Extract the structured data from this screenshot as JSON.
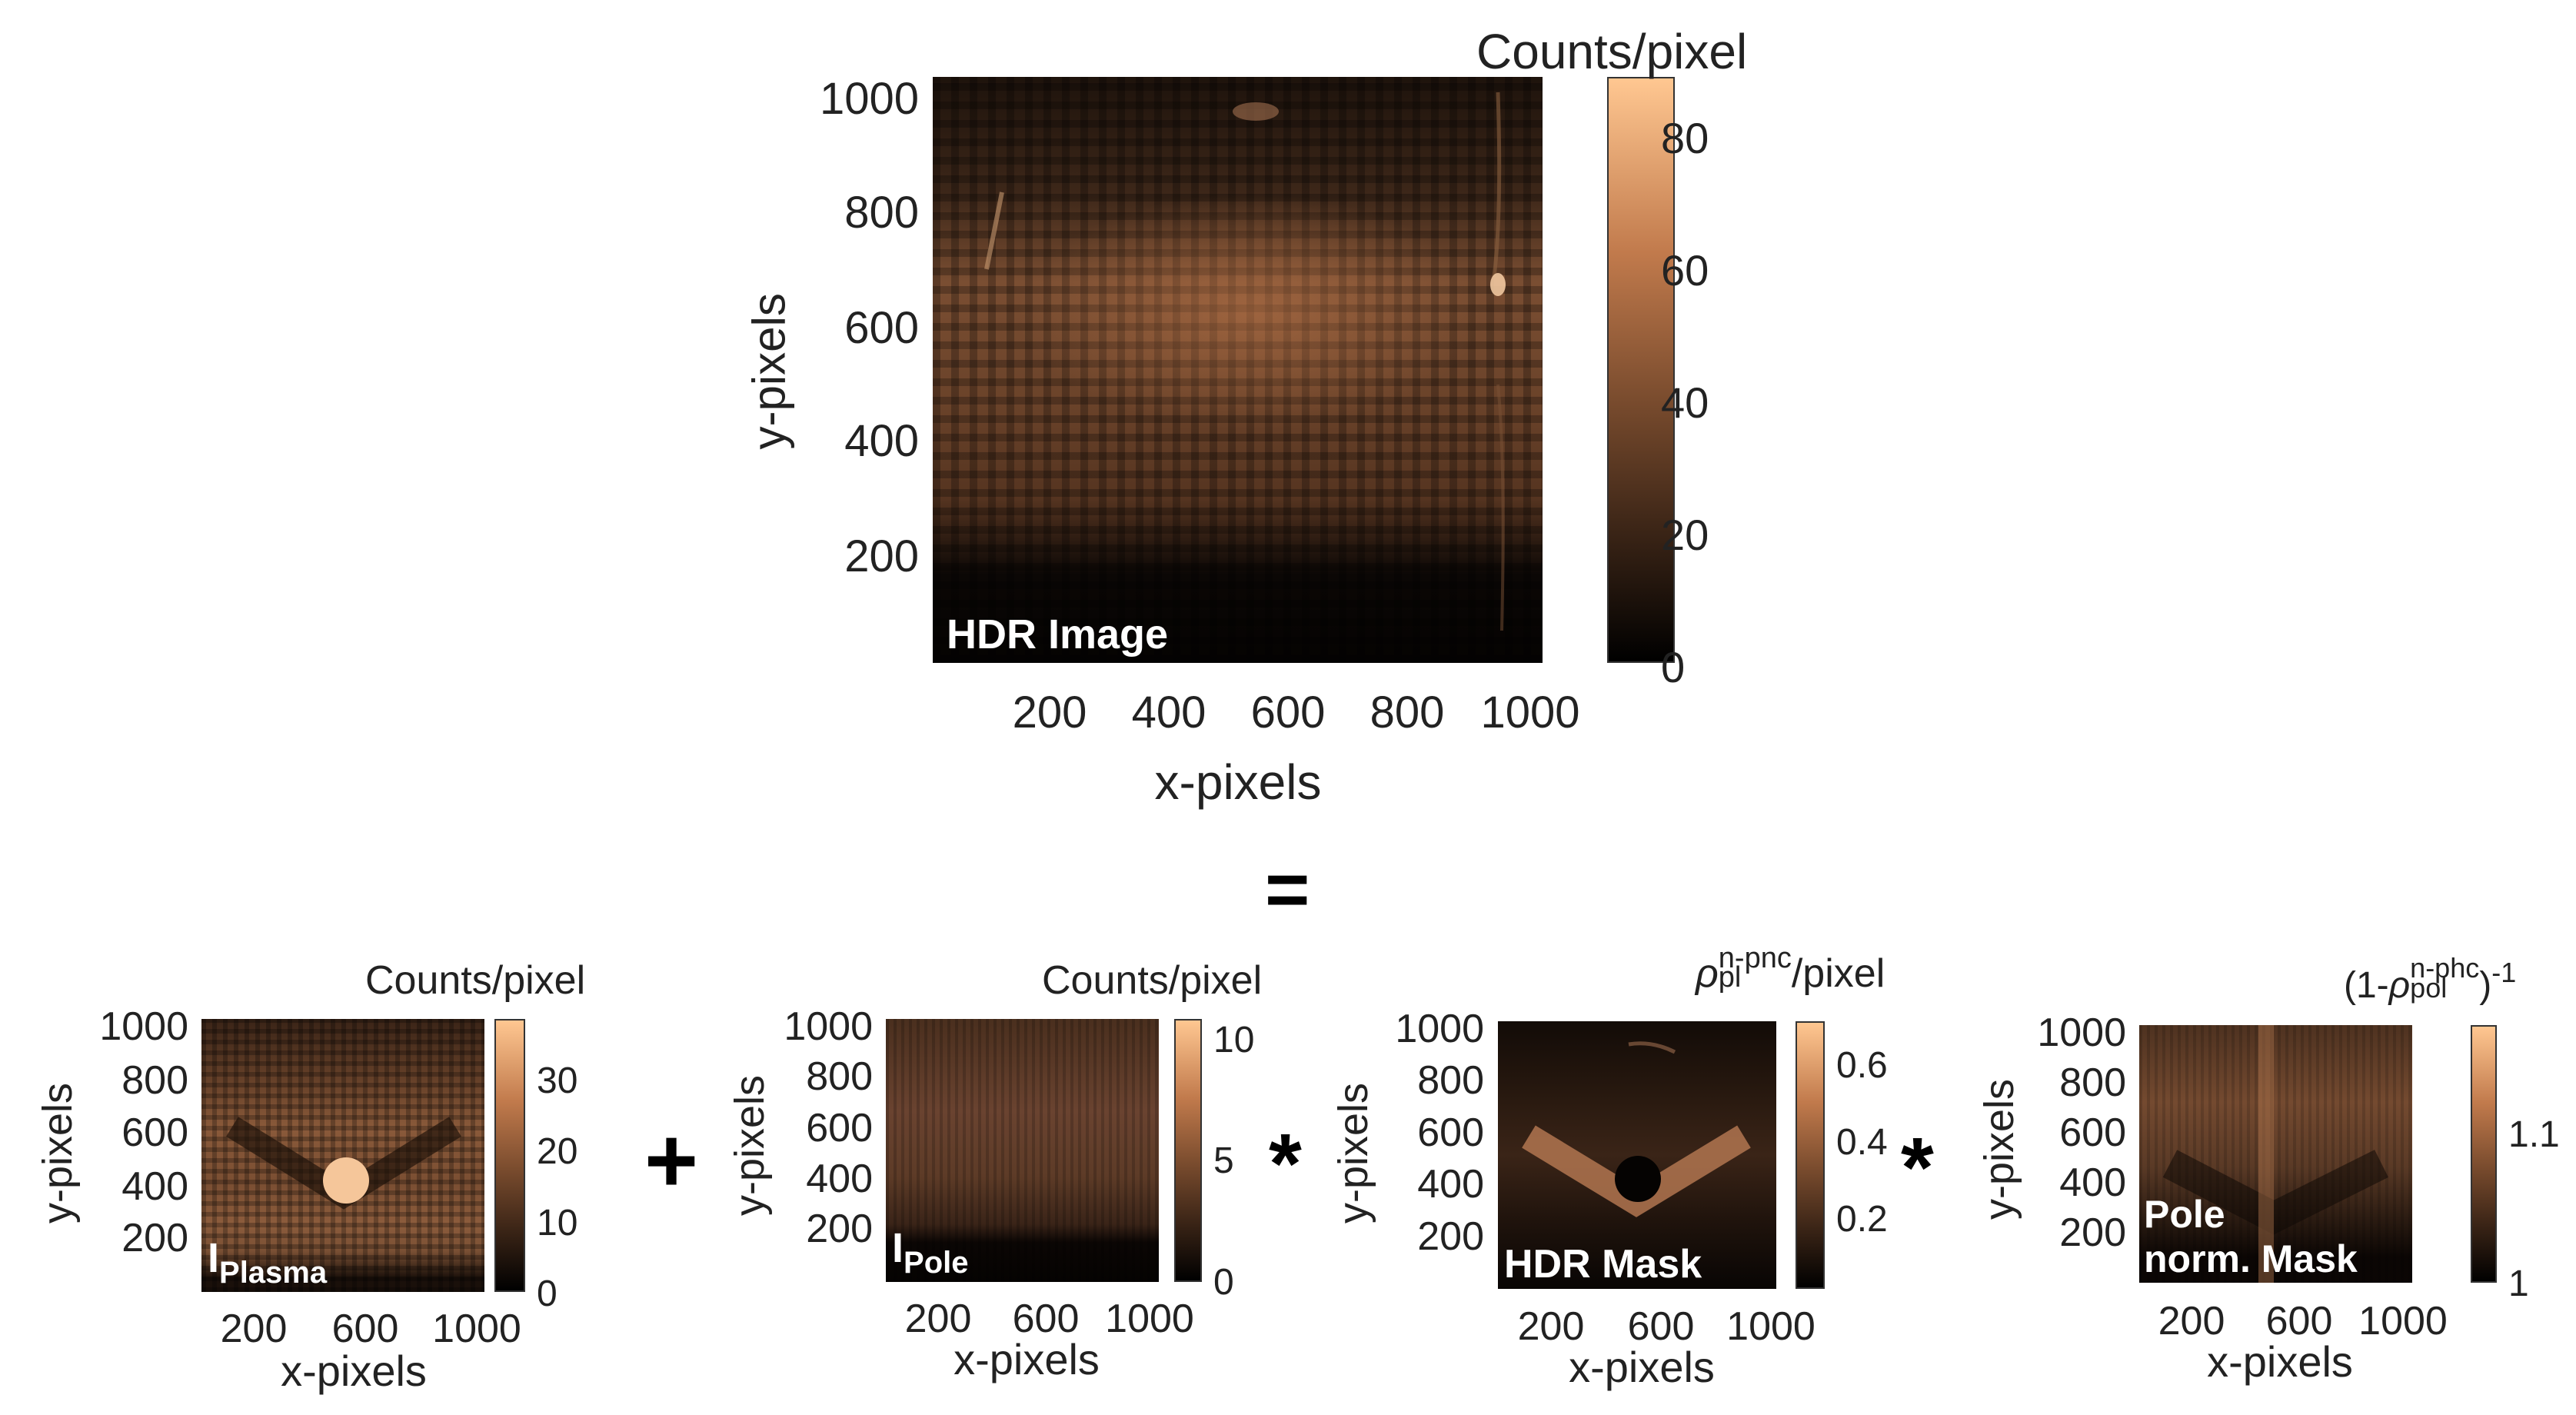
{
  "main": {
    "overlay": "HDR Image",
    "colorbar_title": "Counts/pixel",
    "colorbar_ticks": [
      "0",
      "20",
      "40",
      "60",
      "80"
    ],
    "colorbar_levels": [
      0,
      20,
      40,
      60,
      80
    ],
    "colorbar_max": 88,
    "x_ticks": [
      "200",
      "400",
      "600",
      "800",
      "1000"
    ],
    "y_ticks": [
      "1000",
      "800",
      "600",
      "400",
      "200"
    ],
    "xlabel": "x-pixels",
    "ylabel": "y-pixels"
  },
  "equals": "=",
  "plus": "+",
  "times": "*",
  "panels": [
    {
      "overlay_main": "I",
      "overlay_sub": "Plasma",
      "colorbar_title": "Counts/pixel",
      "colorbar_ticks": [
        "0",
        "10",
        "20",
        "30"
      ],
      "x_ticks": [
        "200",
        "600",
        "1000"
      ],
      "y_ticks": [
        "1000",
        "800",
        "600",
        "400",
        "200"
      ],
      "xlabel": "x-pixels",
      "ylabel": "y-pixels"
    },
    {
      "overlay_main": "I",
      "overlay_sub": "Pole",
      "colorbar_title": "Counts/pixel",
      "colorbar_ticks": [
        "0",
        "5",
        "10"
      ],
      "x_ticks": [
        "200",
        "600",
        "1000"
      ],
      "y_ticks": [
        "1000",
        "800",
        "600",
        "400",
        "200"
      ],
      "xlabel": "x-pixels",
      "ylabel": "y-pixels"
    },
    {
      "overlay_main": "HDR Mask",
      "colorbar_title_sym": "ρ",
      "colorbar_title_sup": "n-pnc",
      "colorbar_title_sub": "pl",
      "colorbar_title_rest": "/pixel",
      "colorbar_ticks": [
        "0.2",
        "0.4",
        "0.6"
      ],
      "x_ticks": [
        "200",
        "600",
        "1000"
      ],
      "y_ticks": [
        "1000",
        "800",
        "600",
        "400",
        "200"
      ],
      "xlabel": "x-pixels",
      "ylabel": "y-pixels"
    },
    {
      "overlay_line1": "Pole",
      "overlay_line2": "norm. Mask",
      "colorbar_title_pre": "(1-",
      "colorbar_title_sym": "ρ",
      "colorbar_title_sup": "n-phc",
      "colorbar_title_sub": "pol",
      "colorbar_title_post": ")",
      "colorbar_title_exp": "-1",
      "colorbar_ticks": [
        "1",
        "1.1"
      ],
      "x_ticks": [
        "200",
        "600",
        "1000"
      ],
      "y_ticks": [
        "1000",
        "800",
        "600",
        "400",
        "200"
      ],
      "xlabel": "x-pixels",
      "ylabel": "y-pixels"
    }
  ]
}
